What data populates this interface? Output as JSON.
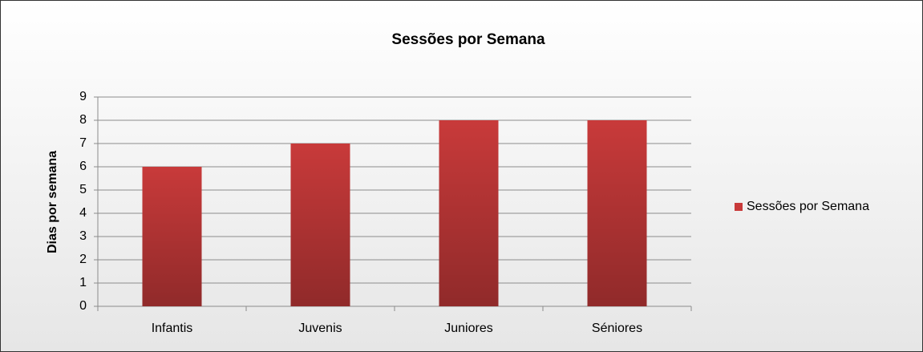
{
  "chart_data": {
    "type": "bar",
    "title": "Sessões por Semana",
    "y_label": "Dias por semana",
    "categories": [
      "Infantis",
      "Juvenis",
      "Juniores",
      "Séniores"
    ],
    "series": [
      {
        "name": "Sessões por Semana",
        "color": "#c83a3a",
        "values": [
          6,
          7,
          8,
          8
        ]
      }
    ],
    "ylim": [
      0,
      9
    ],
    "yticks": [
      0,
      1,
      2,
      3,
      4,
      5,
      6,
      7,
      8,
      9
    ],
    "grid": true,
    "legend": "right"
  }
}
